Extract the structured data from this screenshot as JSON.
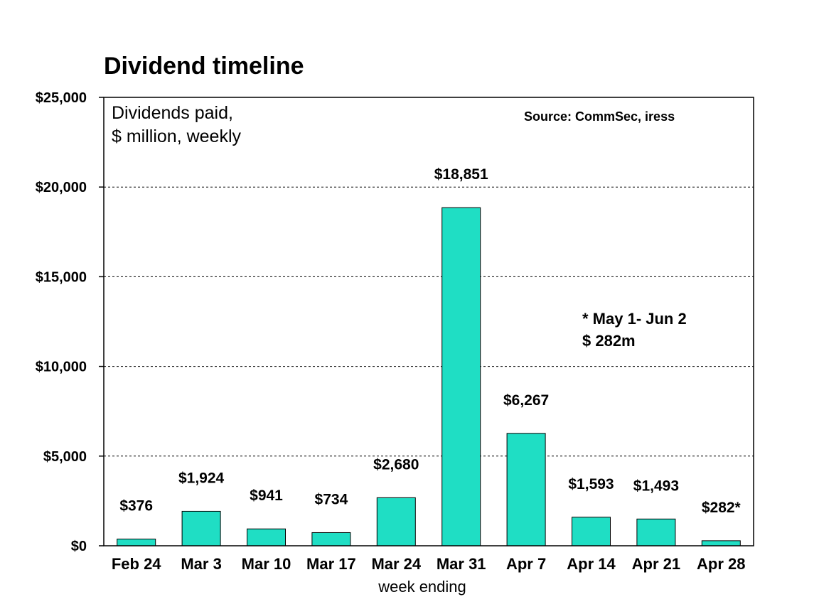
{
  "chart_data": {
    "type": "bar",
    "title": "Dividend timeline",
    "subtitle_lines": [
      "Dividends paid,",
      "$ million, weekly"
    ],
    "source": "Source: CommSec, iress",
    "note_lines": [
      "* May 1- Jun 2",
      "$ 282m"
    ],
    "xlabel": "week ending",
    "ylabel": "",
    "categories": [
      "Feb 24",
      "Mar 3",
      "Mar 10",
      "Mar 17",
      "Mar 24",
      "Mar 31",
      "Apr 7",
      "Apr 14",
      "Apr 21",
      "Apr 28"
    ],
    "values": [
      376,
      1924,
      941,
      734,
      2680,
      18851,
      6267,
      1593,
      1493,
      282
    ],
    "data_labels": [
      "$376",
      "$1,924",
      "$941",
      "$734",
      "$2,680",
      "$18,851",
      "$6,267",
      "$1,593",
      "$1,493",
      "$282*"
    ],
    "ylim": [
      0,
      25000
    ],
    "y_ticks": [
      0,
      5000,
      10000,
      15000,
      20000,
      25000
    ],
    "y_tick_labels": [
      "$0",
      "$5,000",
      "$10,000",
      "$15,000",
      "$20,000",
      "$25,000"
    ],
    "grid": "dashed horizontal",
    "legend": "none",
    "bar_color": "#1fdec4",
    "bar_edge_color": "#000000"
  }
}
